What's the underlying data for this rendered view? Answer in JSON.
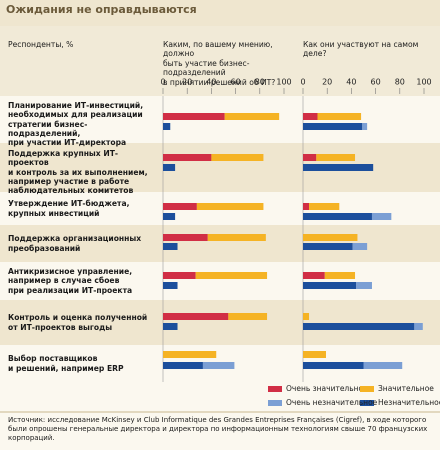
{
  "chart_data": {
    "type": "barh-stacked-pair",
    "title": "Ожидания не оправдываются",
    "ylabel": "Респонденты, %",
    "panels": [
      {
        "title": "Каким, по вашему мнению, должно\nбыть участие бизнес-подразделений\nв принятии решений об ИТ?"
      },
      {
        "title": "Как они участвуют на самом деле?"
      }
    ],
    "xlim": [
      0,
      100
    ],
    "xticks": [
      0,
      20,
      40,
      60,
      80,
      100
    ],
    "categories": [
      "Планирование ИТ-инвестиций,\nнеобходимых для реализации\nстратегии бизнес-подразделений,\nпри участии ИТ-директора",
      "Поддержка крупных ИТ-проектов\nи контроль за их выполнением,\nнапример участие в работе\nнаблюдательных комитетов",
      "Утверждение ИТ-бюджета,\nкрупных инвестиций",
      "Поддержка организационных\nпреобразований",
      "Антикризисное управление,\nнапример в случае сбоев\nпри реализации ИТ-проекта",
      "Контроль и оценка полученной\nот ИТ-проектов выгоды",
      "Выбор поставщиков\nи решений, например ERP"
    ],
    "series": [
      {
        "name": "Очень значительное",
        "color": "#d12e45",
        "bar": 0,
        "values": [
          [
            51,
            40,
            28,
            37,
            27,
            54,
            0
          ],
          [
            12,
            11,
            5,
            0,
            18,
            0,
            0
          ]
        ]
      },
      {
        "name": "Значительное",
        "color": "#f5b324",
        "bar": 0,
        "values": [
          [
            45,
            43,
            55,
            48,
            59,
            32,
            44
          ],
          [
            36,
            32,
            25,
            45,
            25,
            5,
            19
          ]
        ]
      },
      {
        "name": "Незначительное",
        "color": "#1c4f9c",
        "bar": 1,
        "values": [
          [
            6,
            10,
            10,
            12,
            12,
            12,
            33
          ],
          [
            49,
            58,
            57,
            41,
            44,
            92,
            50
          ]
        ]
      },
      {
        "name": "Очень незначительное",
        "color": "#7b9fd4",
        "bar": 1,
        "values": [
          [
            0,
            0,
            0,
            0,
            0,
            0,
            26
          ],
          [
            4,
            0,
            16,
            12,
            13,
            7,
            32
          ]
        ]
      }
    ],
    "footnote": "Источник: исследование McKinsey и Club Informatique des Grandes Entreprises Françaises (Cigref), в ходе которого\nбыли опрошены генеральные директора и директора по информационным технологиям свыше 70 французских корпораций."
  }
}
